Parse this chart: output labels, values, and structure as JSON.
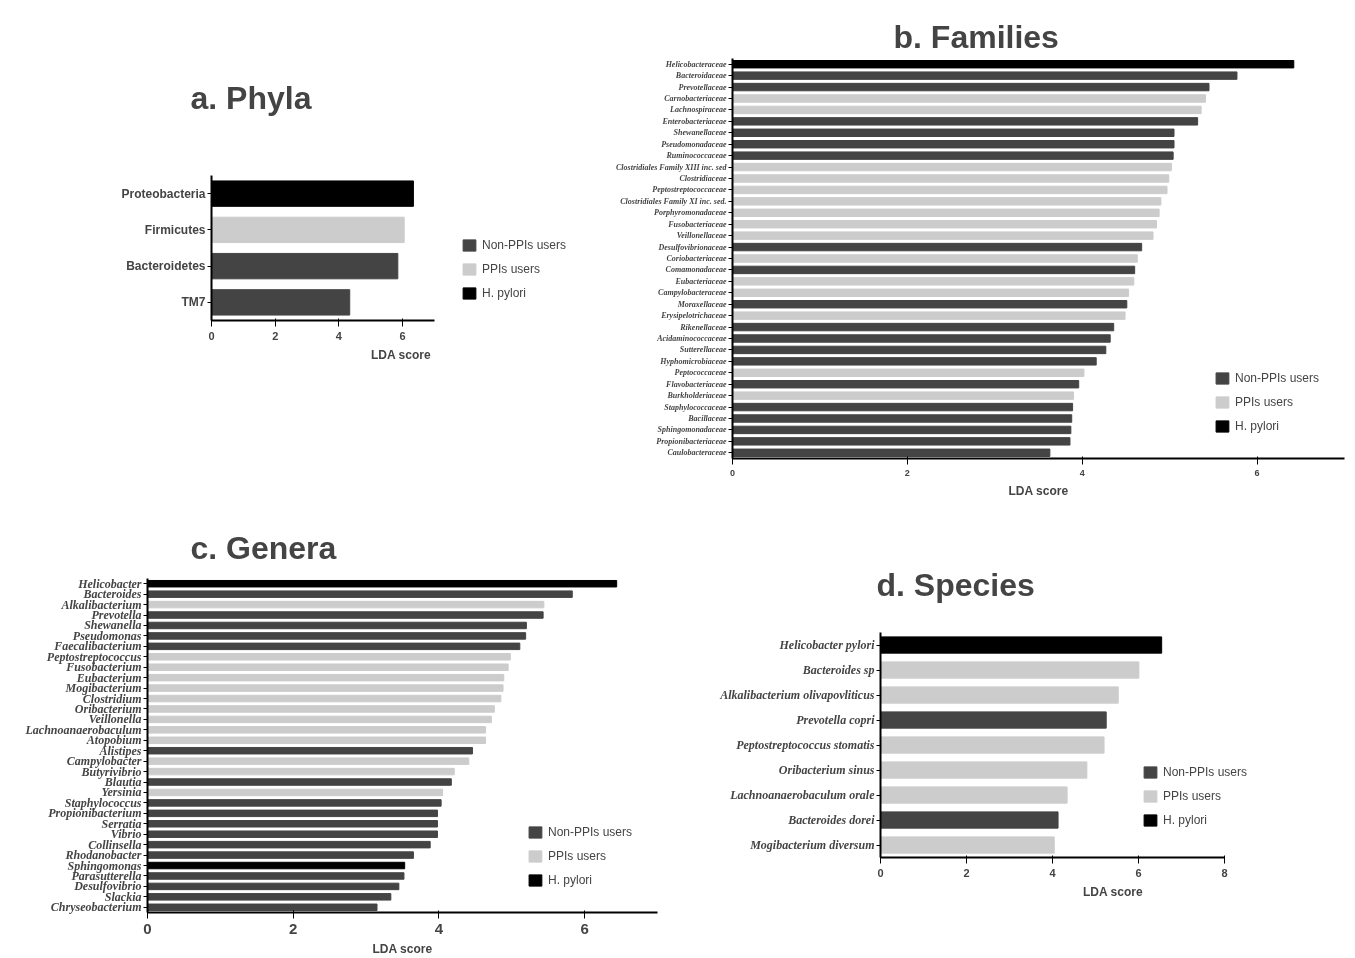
{
  "chart_data": [
    {
      "type": "bar",
      "orientation": "horizontal",
      "title": "a. Phyla",
      "xlabel": "LDA score",
      "categories": [
        "Proteobacteria",
        "Firmicutes",
        "Bacteroidetes",
        "TM7"
      ],
      "series": [
        {
          "name": "Non-PPIs users",
          "color": "#444444",
          "values": [
            null,
            null,
            5.85,
            4.34
          ]
        },
        {
          "name": "PPIs users",
          "color": "#cccccc",
          "values": [
            null,
            6.05,
            null,
            null
          ]
        },
        {
          "name": "H. pylori",
          "color": "#000000",
          "values": [
            6.34,
            null,
            null,
            null
          ]
        }
      ],
      "xlim": [
        0,
        7
      ],
      "xticks": [
        0,
        2,
        4,
        6
      ],
      "grid": false,
      "legend": "right"
    },
    {
      "type": "bar",
      "orientation": "horizontal",
      "title": "b. Families",
      "xlabel": "LDA score",
      "categories": [
        "Helicobacteraceae",
        "Bacteroidaceae",
        "Prevotellaceae",
        "Carnobacteriaceae",
        "Lachnospiraceae",
        "Enterobacteriaceae",
        "Shewanellaceae",
        "Pseudomonadaceae",
        "Ruminococcaceae",
        "Clostridiales Family XIII inc. sed",
        "Clostridiaceae",
        "Peptostreptococcaceae",
        "Clostridiales Family XI inc. sed.",
        "Porphyromonadaceae",
        "Fusobacteriaceae",
        "Veillonellaceae",
        "Desulfovibrionaceae",
        "Coriobacteriaceae",
        "Comamonadaceae",
        "Eubacteriaceae",
        "Campylobacteraceae",
        "Moraxellaceae",
        "Erysipelotrichaceae",
        "Rikenellaceae",
        "Acidaminococcaceae",
        "Sutterellaceae",
        "Hyphomicrobiaceae",
        "Peptococcaceae",
        "Flavobacteriaceae",
        "Burkholderiaceae",
        "Staphylococcaceae",
        "Bacillaceae",
        "Sphingomonadaceae",
        "Propionibacteriaceae",
        "Caulobacteraceae"
      ],
      "series": [
        {
          "name": "Non-PPIs users",
          "color": "#444444",
          "values": [
            null,
            5.77,
            5.45,
            null,
            null,
            5.32,
            5.05,
            5.05,
            5.04,
            null,
            null,
            null,
            null,
            null,
            null,
            null,
            4.68,
            null,
            4.6,
            null,
            null,
            4.51,
            null,
            4.36,
            4.32,
            4.27,
            4.16,
            null,
            3.96,
            null,
            3.89,
            3.88,
            3.87,
            3.86,
            3.63
          ]
        },
        {
          "name": "PPIs users",
          "color": "#cccccc",
          "values": [
            null,
            null,
            null,
            5.41,
            5.36,
            null,
            null,
            null,
            null,
            5.02,
            4.99,
            4.97,
            4.9,
            4.88,
            4.85,
            4.81,
            null,
            4.63,
            null,
            4.59,
            4.53,
            null,
            4.49,
            null,
            null,
            null,
            null,
            4.02,
            null,
            3.9,
            null,
            null,
            null,
            null,
            null
          ]
        },
        {
          "name": "H. pylori",
          "color": "#000000",
          "values": [
            6.42,
            null,
            null,
            null,
            null,
            null,
            null,
            null,
            null,
            null,
            null,
            null,
            null,
            null,
            null,
            null,
            null,
            null,
            null,
            null,
            null,
            null,
            null,
            null,
            null,
            null,
            null,
            null,
            null,
            null,
            null,
            null,
            null,
            null,
            null
          ]
        }
      ],
      "xlim": [
        0,
        7
      ],
      "xticks": [
        0,
        2,
        4,
        6
      ],
      "grid": false,
      "legend": "bottom right"
    },
    {
      "type": "bar",
      "orientation": "horizontal",
      "title": "c. Genera",
      "xlabel": "LDA score",
      "categories": [
        "Helicobacter",
        "Bacteroides",
        "Alkalibacterium",
        "Prevotella",
        "Shewanella",
        "Pseudomonas",
        "Faecalibacterium",
        "Peptostreptococcus",
        "Fusobacterium",
        "Eubacterium",
        "Mogibacterium",
        "Clostridium",
        "Oribacterium",
        "Veillonella",
        "Lachnoanaerobaculum",
        "Atopobium",
        "Alistipes",
        "Campylobacter",
        "Butyrivibrio",
        "Blautia",
        "Yersinia",
        "Staphylococcus",
        "Propionibacterium",
        "Serratia",
        "Vibrio",
        "Collinsella",
        "Rhodanobacter",
        "Sphingomonas",
        "Parasutterella",
        "Desulfovibrio",
        "Slackia",
        "Chryseobacterium"
      ],
      "series": [
        {
          "name": "Non-PPIs users",
          "color": "#444444",
          "values": [
            null,
            5.83,
            null,
            5.43,
            5.2,
            5.19,
            5.11,
            null,
            null,
            null,
            null,
            null,
            null,
            null,
            null,
            null,
            4.46,
            null,
            null,
            4.17,
            null,
            4.03,
            3.98,
            3.98,
            3.98,
            3.88,
            3.65,
            null,
            3.52,
            3.45,
            3.34,
            3.15
          ]
        },
        {
          "name": "PPIs users",
          "color": "#cccccc",
          "values": [
            null,
            null,
            5.44,
            null,
            null,
            null,
            null,
            4.98,
            4.95,
            4.89,
            4.88,
            4.85,
            4.76,
            4.72,
            4.64,
            4.64,
            null,
            4.41,
            4.21,
            null,
            4.05,
            null,
            null,
            null,
            null,
            null,
            null,
            null,
            null,
            null,
            null,
            null
          ]
        },
        {
          "name": "H. pylori",
          "color": "#000000",
          "values": [
            6.44,
            null,
            null,
            null,
            null,
            null,
            null,
            null,
            null,
            null,
            null,
            null,
            null,
            null,
            null,
            null,
            null,
            null,
            null,
            null,
            null,
            null,
            null,
            null,
            null,
            null,
            null,
            3.53,
            null,
            null,
            null,
            null
          ]
        }
      ],
      "xlim": [
        0,
        7
      ],
      "xticks": [
        0,
        2,
        4,
        6
      ],
      "grid": false,
      "legend": "bottom right"
    },
    {
      "type": "bar",
      "orientation": "horizontal",
      "title": "d. Species",
      "xlabel": "LDA score",
      "categories": [
        "Helicobacter pylori",
        "Bacteroides sp",
        "Alkalibacterium olivapovliticus",
        "Prevotella copri",
        "Peptostreptococcus stomatis",
        "Oribacterium sinus",
        "Lachnoanaerobaculum orale",
        "Bacteroides dorei",
        "Mogibacterium diversum"
      ],
      "series": [
        {
          "name": "Non-PPIs users",
          "color": "#444444",
          "values": [
            null,
            null,
            null,
            5.25,
            null,
            null,
            null,
            4.13,
            null
          ]
        },
        {
          "name": "PPIs users",
          "color": "#cccccc",
          "values": [
            null,
            6.01,
            5.53,
            null,
            5.2,
            4.8,
            4.34,
            null,
            4.04
          ]
        },
        {
          "name": "H. pylori",
          "color": "#000000",
          "values": [
            6.54,
            null,
            null,
            null,
            null,
            null,
            null,
            null,
            null
          ]
        }
      ],
      "xlim": [
        0,
        8
      ],
      "xticks": [
        0,
        2,
        4,
        6,
        8
      ],
      "grid": false,
      "legend": "right"
    }
  ]
}
